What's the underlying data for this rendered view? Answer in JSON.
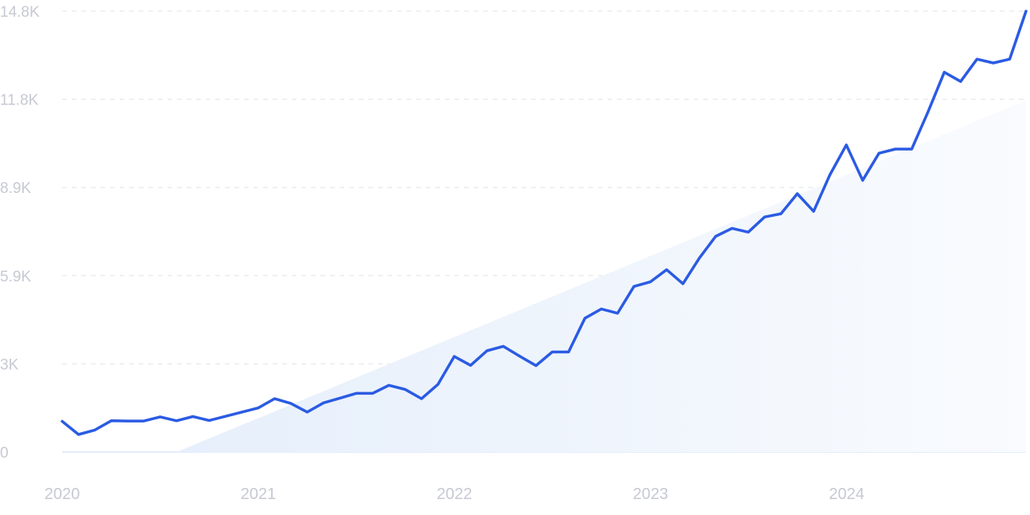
{
  "chart_data": {
    "type": "line",
    "title": "",
    "xlabel": "",
    "ylabel": "",
    "x_tick_labels": [
      "2020",
      "2021",
      "2022",
      "2023",
      "2024"
    ],
    "y_tick_labels": [
      "0",
      "3K",
      "5.9K",
      "8.9K",
      "11.8K",
      "14.8K"
    ],
    "y_tick_values": [
      0,
      2960,
      5920,
      8880,
      11840,
      14800
    ],
    "ylim": [
      0,
      14800
    ],
    "xlim": [
      "2020-01",
      "2024-12"
    ],
    "grid": true,
    "colors": {
      "line": "#2b5be3",
      "trend_fill_start": "#e6effb",
      "trend_fill_end": "#f9fbfe",
      "grid": "#dfe3ea",
      "baseline": "#dbe6fa",
      "tick_text": "#c7c9d3"
    },
    "trend": {
      "start": {
        "x": "2020-08",
        "y": 0
      },
      "end": {
        "x": "2024-12",
        "y": 11800
      }
    },
    "series": [
      {
        "x": [
          "2020-01",
          "2020-02",
          "2020-03",
          "2020-04",
          "2020-05",
          "2020-06",
          "2020-07",
          "2020-08",
          "2020-09",
          "2020-10",
          "2020-11",
          "2020-12",
          "2021-01",
          "2021-02",
          "2021-03",
          "2021-04",
          "2021-05",
          "2021-06",
          "2021-07",
          "2021-08",
          "2021-09",
          "2021-10",
          "2021-11",
          "2021-12",
          "2022-01",
          "2022-02",
          "2022-03",
          "2022-04",
          "2022-05",
          "2022-06",
          "2022-07",
          "2022-08",
          "2022-09",
          "2022-10",
          "2022-11",
          "2022-12",
          "2023-01",
          "2023-02",
          "2023-03",
          "2023-04",
          "2023-05",
          "2023-06",
          "2023-07",
          "2023-08",
          "2023-09",
          "2023-10",
          "2023-11",
          "2023-12",
          "2024-01",
          "2024-02",
          "2024-03",
          "2024-04",
          "2024-05",
          "2024-06",
          "2024-07",
          "2024-08",
          "2024-09",
          "2024-10",
          "2024-11",
          "2024-12"
        ],
        "values": [
          1030,
          590,
          740,
          1050,
          1040,
          1040,
          1180,
          1050,
          1190,
          1060,
          1200,
          1340,
          1480,
          1790,
          1630,
          1340,
          1650,
          1810,
          1970,
          1970,
          2240,
          2100,
          1790,
          2270,
          3210,
          2910,
          3400,
          3550,
          3220,
          2900,
          3360,
          3360,
          4490,
          4800,
          4660,
          5560,
          5710,
          6120,
          5650,
          6510,
          7240,
          7510,
          7380,
          7890,
          8000,
          8670,
          8080,
          9310,
          10310,
          9120,
          10030,
          10170,
          10170,
          11420,
          12750,
          12440,
          13190,
          13060,
          13190,
          14800
        ]
      }
    ]
  }
}
